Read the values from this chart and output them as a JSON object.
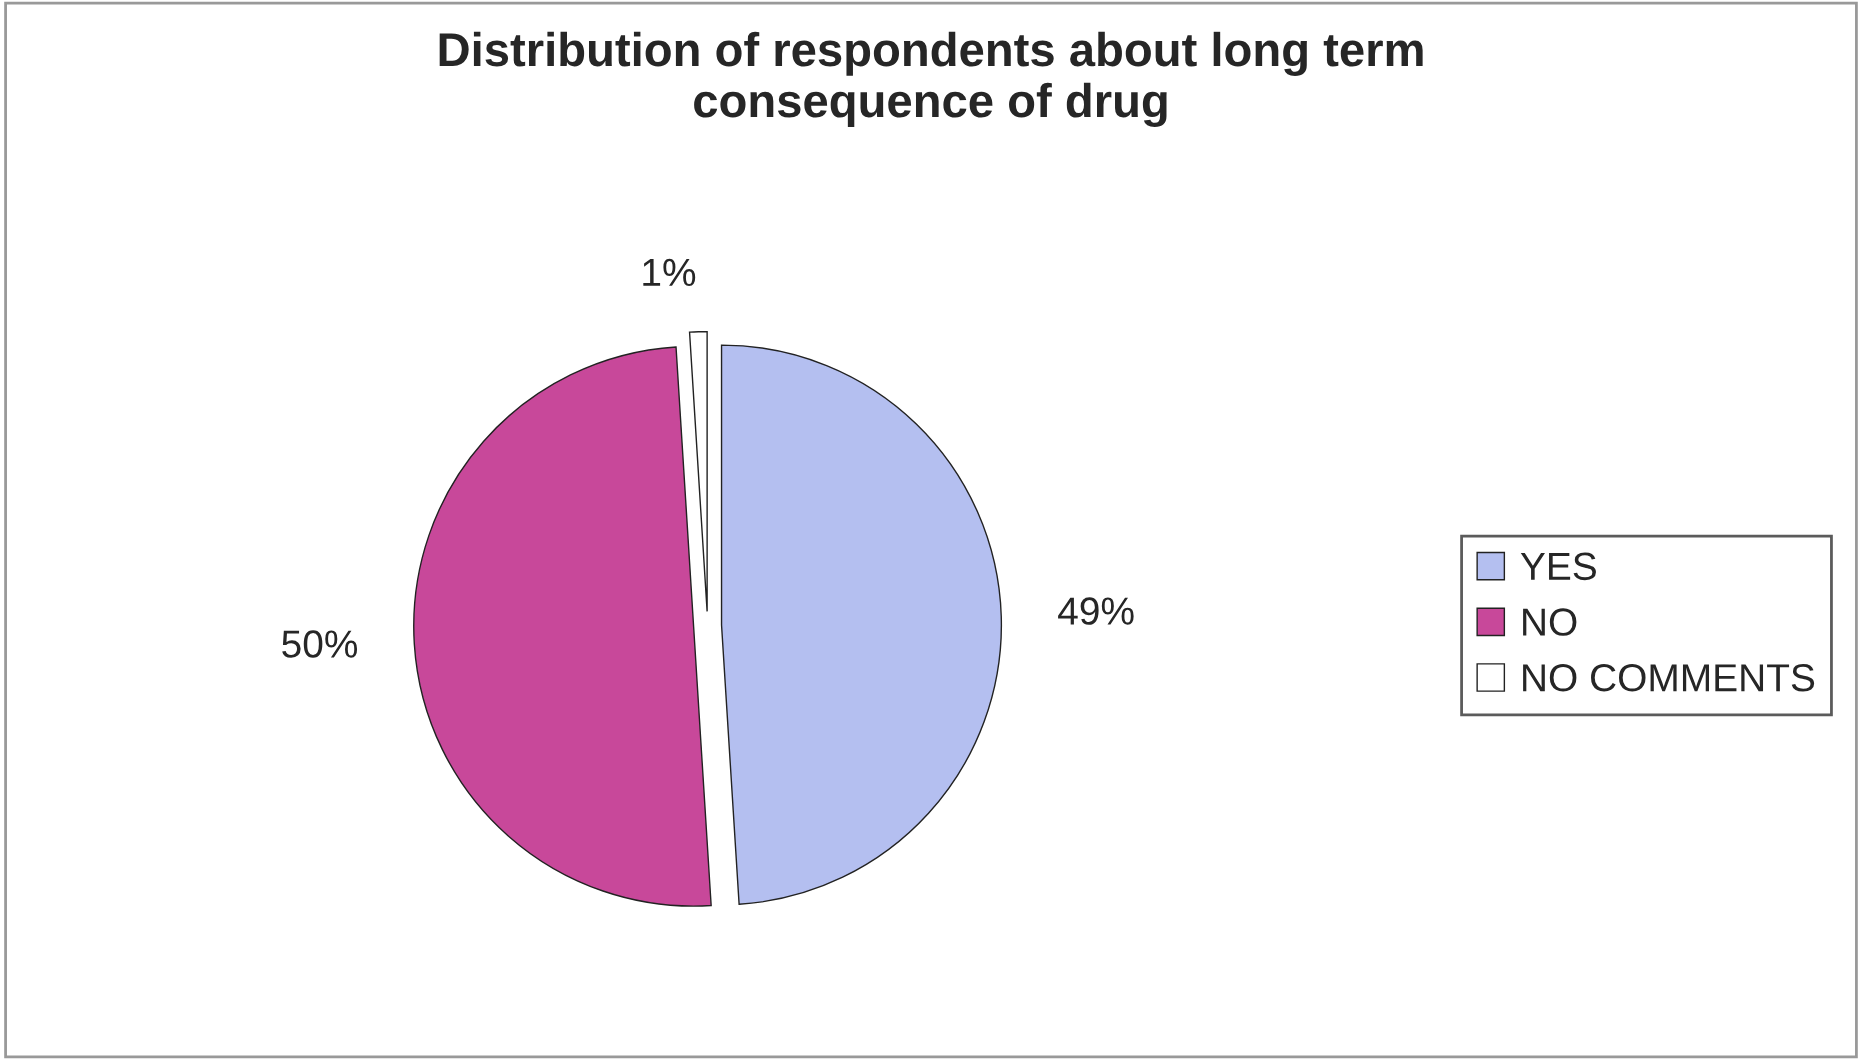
{
  "chart_data": {
    "type": "pie",
    "title": "Distribution of respondents about long term\nconsequence of drug",
    "categories": [
      "YES",
      "NO",
      "NO COMMENTS"
    ],
    "values": [
      49,
      50,
      1
    ],
    "colors": [
      "#b4bff0",
      "#c8489a",
      "#ffffff"
    ],
    "value_labels": [
      "49%",
      "50%",
      "1%"
    ],
    "legend": "right"
  }
}
